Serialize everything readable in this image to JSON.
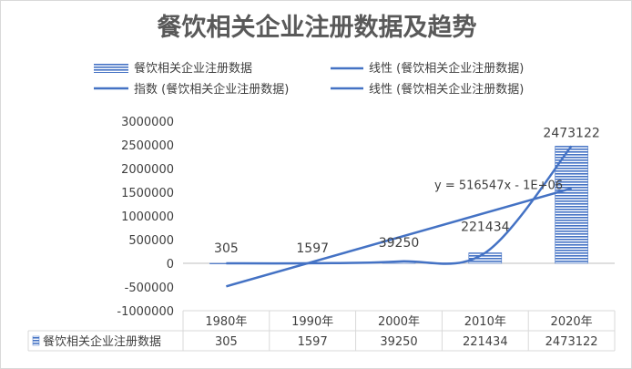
{
  "chart_data": {
    "type": "bar",
    "title": "餐饮相关企业注册数据及趋势",
    "categories": [
      "1980年",
      "1990年",
      "2000年",
      "2010年",
      "2020年"
    ],
    "series": [
      {
        "name": "餐饮相关企业注册数据",
        "values": [
          305,
          1597,
          39250,
          221434,
          2473122
        ]
      }
    ],
    "data_labels": [
      "305",
      "1597",
      "39250",
      "221434",
      "2473122"
    ],
    "yticks": [
      3000000,
      2500000,
      2000000,
      1500000,
      1000000,
      500000,
      0,
      -500000,
      -1000000
    ],
    "ytick_labels": [
      "3000000",
      "2500000",
      "2000000",
      "1500000",
      "1000000",
      "500000",
      "0",
      "-500000",
      "-1000000"
    ],
    "ylim": [
      -1000000,
      3000000
    ],
    "trendlines": [
      {
        "kind": "linear",
        "equation": "y = 516547x - 1E+06"
      },
      {
        "kind": "exponential"
      }
    ],
    "legend": {
      "placement": "top",
      "entries": [
        {
          "label": "餐饮相关企业注册数据",
          "kind": "bar"
        },
        {
          "label": "线性 (餐饮相关企业注册数据)",
          "kind": "line"
        },
        {
          "label": "指数 (餐饮相关企业注册数据)",
          "kind": "line"
        },
        {
          "label": "线性 (餐饮相关企业注册数据)",
          "kind": "line"
        }
      ]
    },
    "data_table": {
      "row_label": "餐饮相关企业注册数据",
      "values": [
        "305",
        "1597",
        "39250",
        "221434",
        "2473122"
      ]
    },
    "colors": {
      "bar": "#4472c4",
      "line": "#4472c4",
      "title": "#595959",
      "text": "#404040",
      "grid": "#d9d9d9"
    }
  }
}
